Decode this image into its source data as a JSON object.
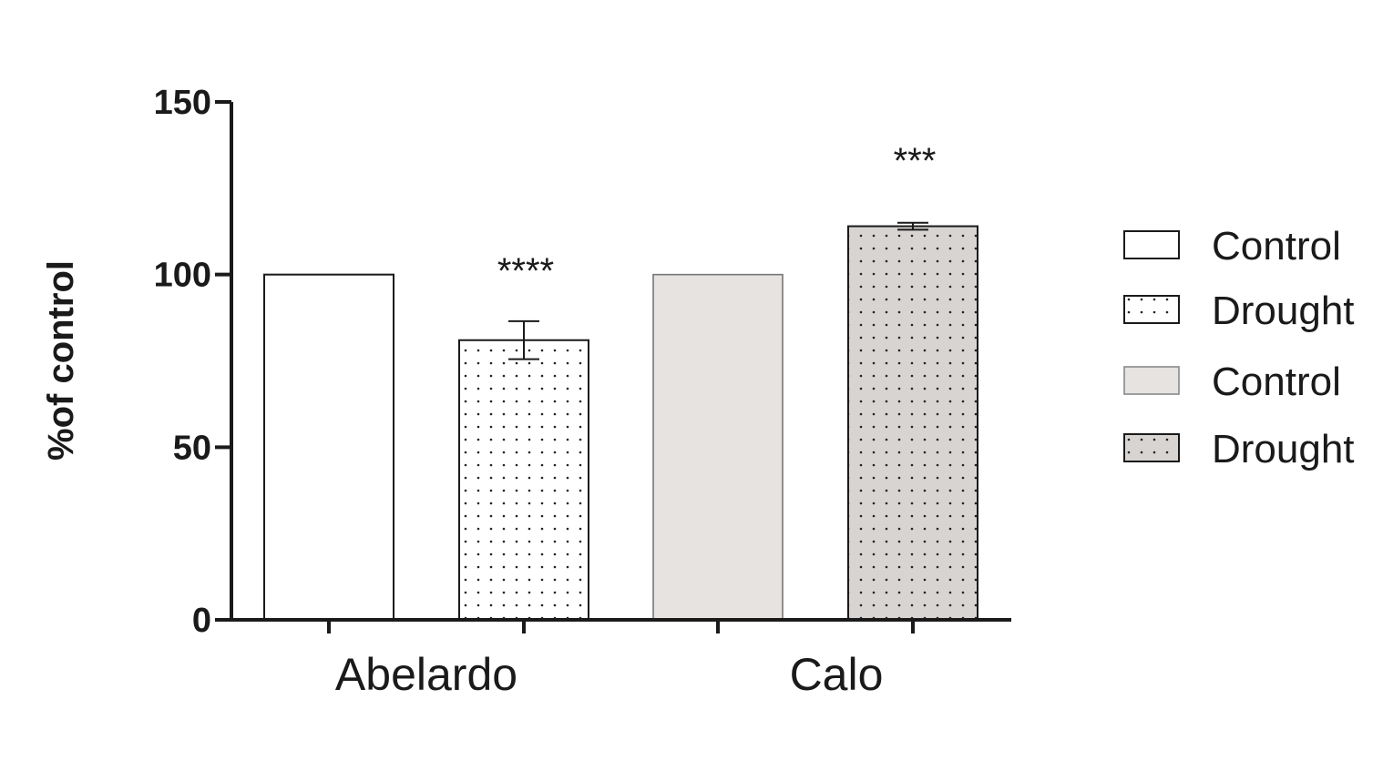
{
  "chart_data": {
    "type": "bar",
    "title": "",
    "xlabel": "",
    "ylabel": "%of control",
    "ylim": [
      0,
      150
    ],
    "yticks": [
      0,
      50,
      100,
      150
    ],
    "grid": false,
    "legend_position": "right",
    "groups": [
      "Abelardo",
      "Calo"
    ],
    "bars": [
      {
        "group": "Abelardo",
        "series": "Control",
        "value": 100,
        "error": 0,
        "fill": "#ffffff",
        "pattern": "none",
        "significance": ""
      },
      {
        "group": "Abelardo",
        "series": "Drought",
        "value": 81,
        "error": 5.5,
        "fill": "#ffffff",
        "pattern": "dots",
        "significance": "****"
      },
      {
        "group": "Calo",
        "series": "Control",
        "value": 100,
        "error": 0,
        "fill": "#e6e3e1",
        "pattern": "none",
        "significance": ""
      },
      {
        "group": "Calo",
        "series": "Drought",
        "value": 114,
        "error": 1,
        "fill": "#d8d4d2",
        "pattern": "dots",
        "significance": "***"
      }
    ],
    "legend": [
      {
        "label": "Control",
        "fill": "#ffffff",
        "pattern": "none"
      },
      {
        "label": "Drought",
        "fill": "#ffffff",
        "pattern": "dots"
      },
      {
        "label": "Control",
        "fill": "#e6e3e1",
        "pattern": "none"
      },
      {
        "label": "Drought",
        "fill": "#d8d4d2",
        "pattern": "dots"
      }
    ]
  },
  "colors": {
    "axis": "#1a1a1a",
    "bar_stroke": "#1a1a1a",
    "dot": "#222222"
  }
}
